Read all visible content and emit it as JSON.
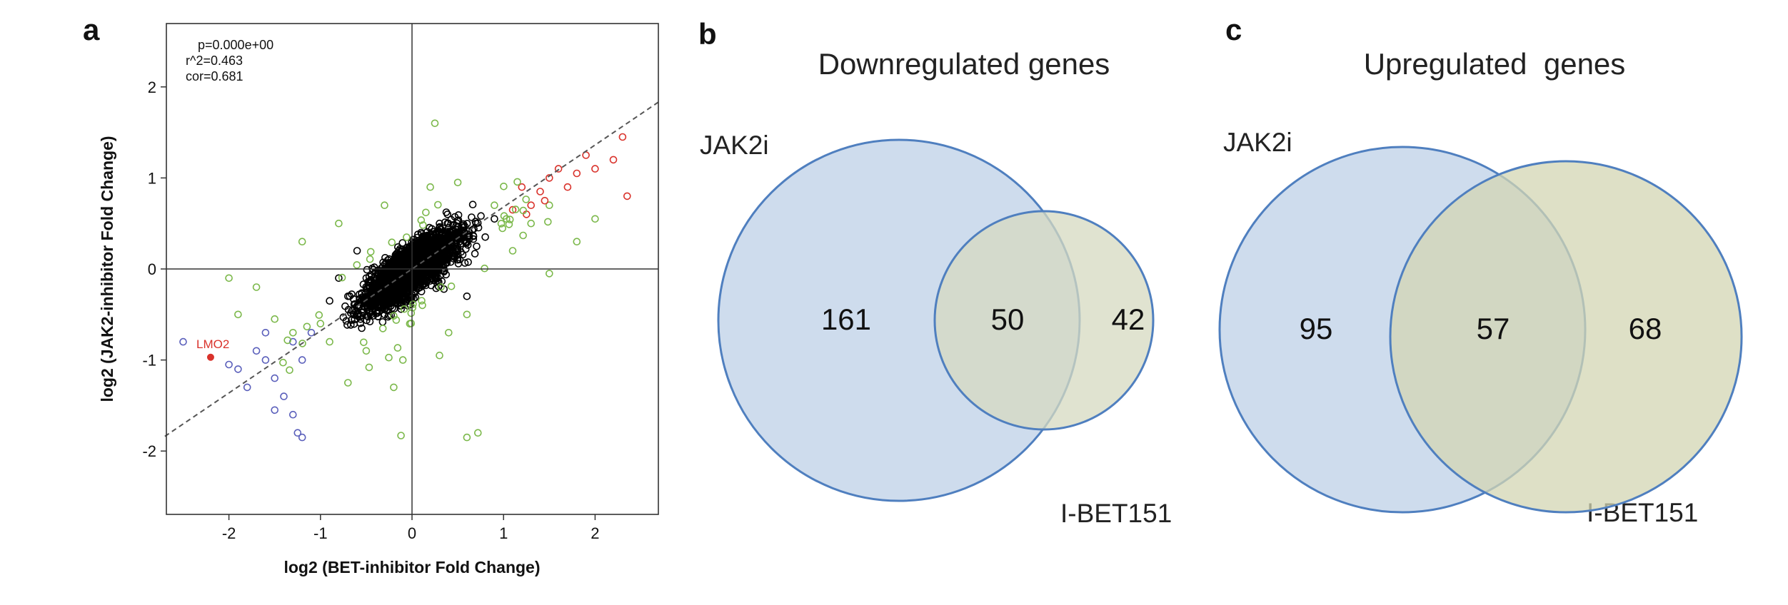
{
  "panels": {
    "a": "a",
    "b": "b",
    "c": "c"
  },
  "chart_data": [
    {
      "type": "scatter",
      "title": "",
      "xlabel": "log2 (BET-inhibitor Fold Change)",
      "ylabel": "log2 (JAK2-inhibitor Fold Change)",
      "xlim": [
        -2.7,
        2.7
      ],
      "ylim": [
        -2.7,
        2.7
      ],
      "x_ticks": [
        "-2",
        "-1",
        "0",
        "1",
        "2"
      ],
      "y_ticks": [
        "2",
        "1",
        "0",
        "-1",
        "-2"
      ],
      "grid": false,
      "stats": [
        "p=0.000e+00",
        "r^2=0.463",
        "cor=0.681"
      ],
      "regression_line": {
        "intercept": 0,
        "slope": 0.681,
        "style": "dashed"
      },
      "highlight": {
        "label": "LMO2",
        "x": -2.2,
        "y": -0.97,
        "color": "#d9322b"
      },
      "series": [
        {
          "color": "#000000",
          "description_points": [
            [
              -0.9,
              -0.35
            ],
            [
              -0.7,
              -0.3
            ],
            [
              -0.5,
              -0.1
            ],
            [
              -0.3,
              0.05
            ],
            [
              0,
              0.1
            ],
            [
              0.2,
              0.15
            ],
            [
              0.4,
              0.25
            ],
            [
              0.6,
              0.3
            ],
            [
              0.8,
              0.35
            ],
            [
              -0.2,
              -0.2
            ],
            [
              0.1,
              0.4
            ],
            [
              0.3,
              0.5
            ],
            [
              -0.6,
              0.2
            ],
            [
              0.5,
              0.1
            ],
            [
              -0.8,
              -0.1
            ],
            [
              0.9,
              0.55
            ],
            [
              0.7,
              0.5
            ],
            [
              -0.4,
              -0.4
            ],
            [
              0.6,
              -0.3
            ],
            [
              -0.3,
              -0.5
            ]
          ]
        },
        {
          "color": "#7bb84a",
          "description_points": [
            [
              -1.0,
              -0.6
            ],
            [
              -0.9,
              -0.8
            ],
            [
              -1.3,
              -0.7
            ],
            [
              -1.5,
              -0.55
            ],
            [
              -1.7,
              -0.2
            ],
            [
              -1.2,
              0.3
            ],
            [
              -0.8,
              0.5
            ],
            [
              -0.3,
              0.7
            ],
            [
              0.2,
              0.9
            ],
            [
              0.5,
              0.95
            ],
            [
              0.9,
              0.7
            ],
            [
              1.1,
              0.2
            ],
            [
              1.3,
              0.5
            ],
            [
              1.5,
              0.7
            ],
            [
              1.5,
              -0.05
            ],
            [
              0.6,
              -0.5
            ],
            [
              0.4,
              -0.7
            ],
            [
              -0.1,
              -1.0
            ],
            [
              0.3,
              -0.95
            ],
            [
              -0.5,
              -0.9
            ],
            [
              -0.7,
              -1.25
            ],
            [
              0.6,
              -1.85
            ],
            [
              0.72,
              -1.8
            ],
            [
              -0.12,
              -1.83
            ],
            [
              0.25,
              1.6
            ],
            [
              -1.9,
              -0.5
            ],
            [
              -2.0,
              -0.1
            ],
            [
              1.8,
              0.3
            ],
            [
              2.0,
              0.55
            ],
            [
              -0.2,
              -1.3
            ]
          ]
        },
        {
          "color": "#d9322b",
          "description_points": [
            [
              1.1,
              0.65
            ],
            [
              1.2,
              0.9
            ],
            [
              1.3,
              0.7
            ],
            [
              1.4,
              0.85
            ],
            [
              1.5,
              1.0
            ],
            [
              1.6,
              1.1
            ],
            [
              1.7,
              0.9
            ],
            [
              1.8,
              1.05
            ],
            [
              1.9,
              1.25
            ],
            [
              2.0,
              1.1
            ],
            [
              2.2,
              1.2
            ],
            [
              2.35,
              0.8
            ],
            [
              2.3,
              1.45
            ],
            [
              1.25,
              0.6
            ],
            [
              1.45,
              0.75
            ]
          ]
        },
        {
          "color": "#5a5fbb",
          "description_points": [
            [
              -2.5,
              -0.8
            ],
            [
              -1.9,
              -1.1
            ],
            [
              -1.8,
              -1.3
            ],
            [
              -1.7,
              -0.9
            ],
            [
              -1.6,
              -1.0
            ],
            [
              -1.5,
              -1.2
            ],
            [
              -1.4,
              -1.4
            ],
            [
              -1.3,
              -0.8
            ],
            [
              -1.2,
              -1.0
            ],
            [
              -1.1,
              -0.7
            ],
            [
              -1.5,
              -1.55
            ],
            [
              -1.3,
              -1.6
            ],
            [
              -1.25,
              -1.8
            ],
            [
              -1.2,
              -1.85
            ],
            [
              -1.6,
              -0.7
            ],
            [
              -2.0,
              -1.05
            ]
          ]
        }
      ]
    },
    {
      "type": "venn",
      "title": "Downregulated genes",
      "sets": [
        "JAK2i",
        "I-BET151"
      ],
      "values": {
        "only_a": "161",
        "both": "50",
        "only_b": "42"
      }
    },
    {
      "type": "venn",
      "title": "Upregulated  genes",
      "sets": [
        "JAK2i",
        "I-BET151"
      ],
      "values": {
        "only_a": "95",
        "both": "57",
        "only_b": "68"
      }
    }
  ]
}
